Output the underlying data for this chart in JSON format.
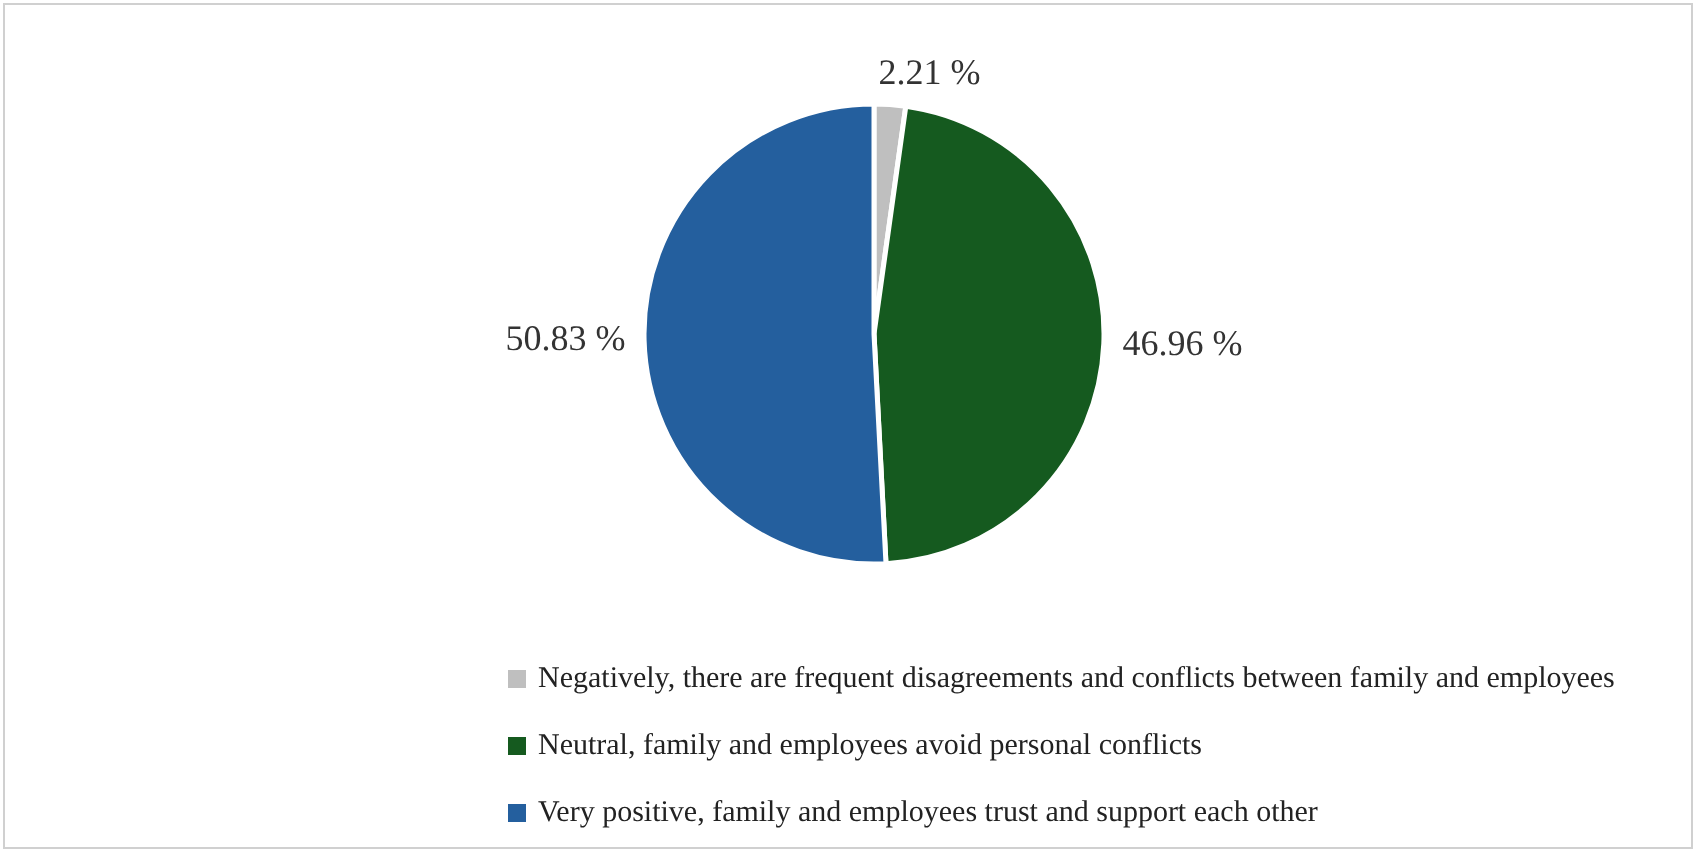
{
  "chart_data": {
    "type": "pie",
    "categories": [
      "Negatively, there are frequent disagreements and conflicts between family and employees",
      "Neutral, family and employees avoid personal conflicts",
      "Very positive, family and employees trust and support each other"
    ],
    "values": [
      2.21,
      46.96,
      50.83
    ],
    "value_labels": [
      "2.21 %",
      "46.96 %",
      "50.83 %"
    ],
    "colors": [
      "#bfbfbf",
      "#155a1f",
      "#245f9e"
    ],
    "legend": "bottom"
  }
}
